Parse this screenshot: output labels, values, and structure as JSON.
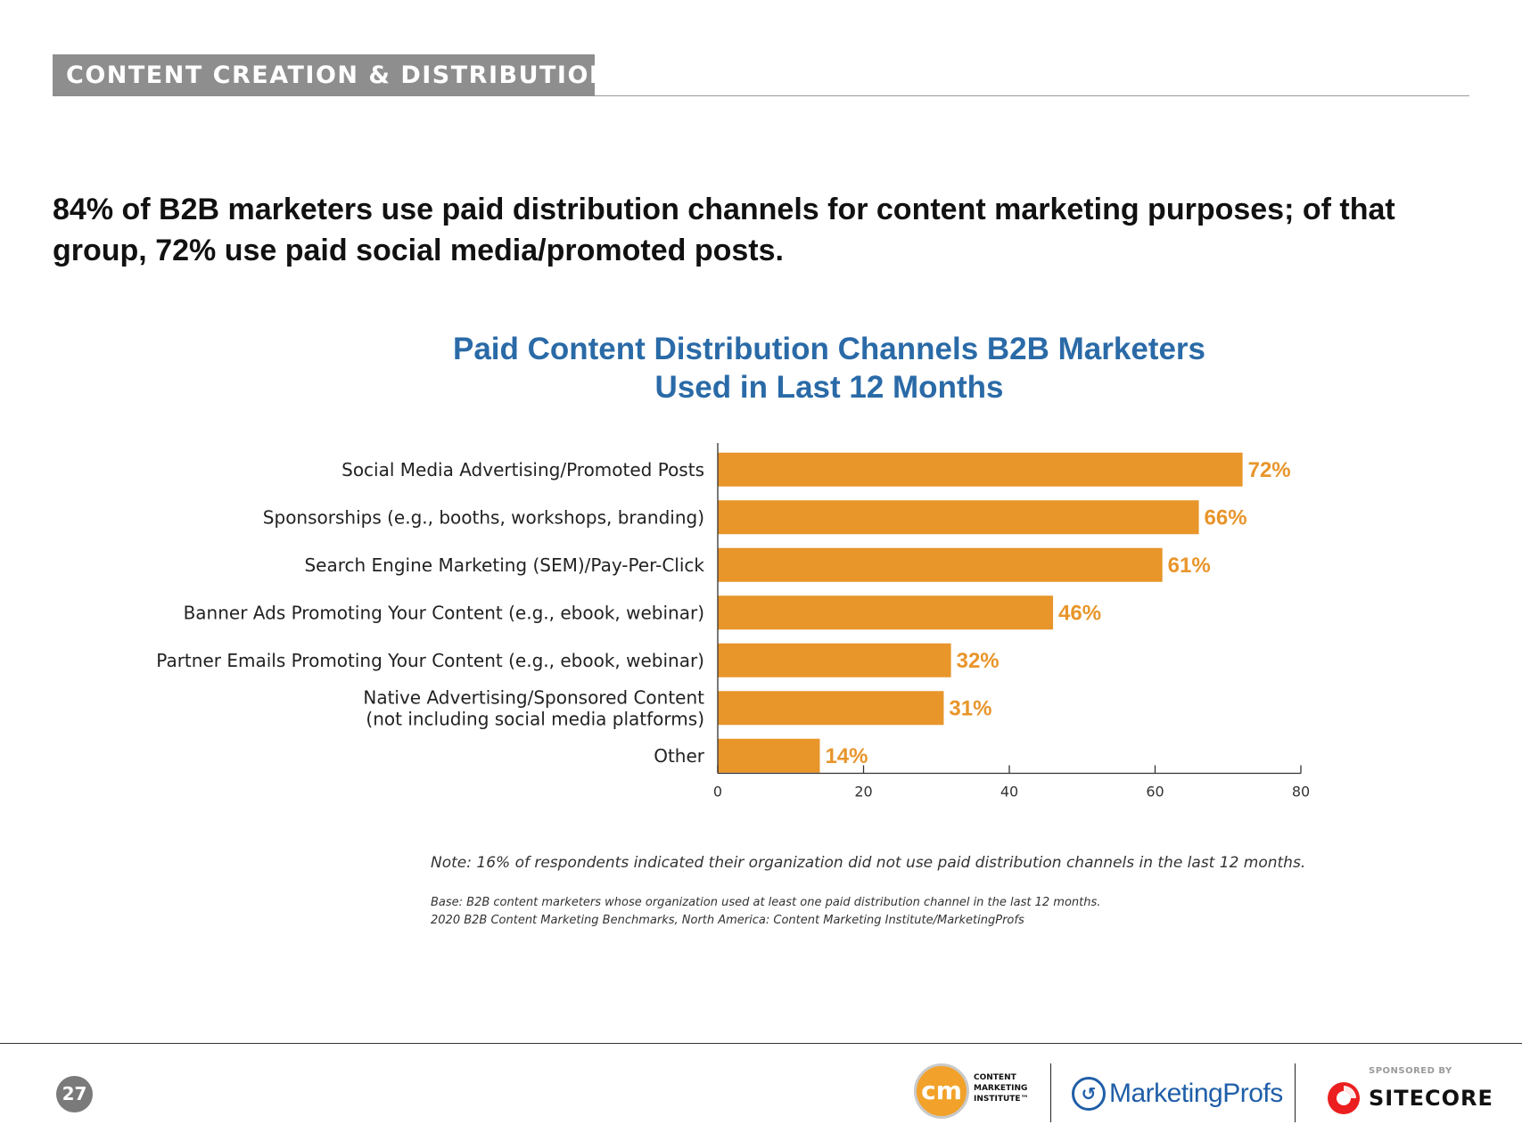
{
  "section": {
    "title": "CONTENT CREATION & DISTRIBUTION"
  },
  "headline": "84% of B2B marketers use paid distribution channels for content marketing purposes; of that group, 72% use paid social media/promoted posts.",
  "chart_data": {
    "type": "bar",
    "orientation": "horizontal",
    "title_lines": [
      "Paid Content Distribution Channels B2B Marketers",
      "Used in Last 12 Months"
    ],
    "categories": [
      [
        "Social Media Advertising/Promoted Posts"
      ],
      [
        "Sponsorships (e.g., booths, workshops, branding)"
      ],
      [
        "Search Engine Marketing (SEM)/Pay-Per-Click"
      ],
      [
        "Banner Ads Promoting Your Content (e.g., ebook, webinar)"
      ],
      [
        "Partner Emails Promoting Your Content (e.g., ebook, webinar)"
      ],
      [
        "Native Advertising/Sponsored Content",
        "(not including social media platforms)"
      ],
      [
        "Other"
      ]
    ],
    "values": [
      72,
      66,
      61,
      46,
      32,
      31,
      14
    ],
    "value_labels": [
      "72%",
      "66%",
      "61%",
      "46%",
      "32%",
      "31%",
      "14%"
    ],
    "xlim": [
      0,
      80
    ],
    "xticks": [
      "0",
      "20",
      "40",
      "60",
      "80"
    ],
    "bar_color": "#e8952a",
    "label_color": "#e8952a",
    "title_color": "#2a6aa7",
    "grid": false,
    "legend": "none"
  },
  "note": "Note: 16% of respondents indicated their organization did not use paid distribution channels in the last 12 months.",
  "base_lines": [
    "Base: B2B content marketers whose organization used at least one paid distribution channel in the last 12 months.",
    "2020 B2B Content Marketing Benchmarks, North America: Content Marketing Institute/MarketingProfs"
  ],
  "footer": {
    "page_number": "27",
    "cmi_logo": {
      "mark": "cm",
      "text_lines": [
        "CONTENT",
        "MARKETING",
        "INSTITUTE™"
      ]
    },
    "mp_logo": {
      "text": "MarketingProfs",
      "icon": "mp-swirl-icon",
      "color": "#1f5ea8"
    },
    "sponsored_by": "SPONSORED BY",
    "sitecore_logo": {
      "text": "SITECORE",
      "color": "#eb1f1f"
    }
  }
}
